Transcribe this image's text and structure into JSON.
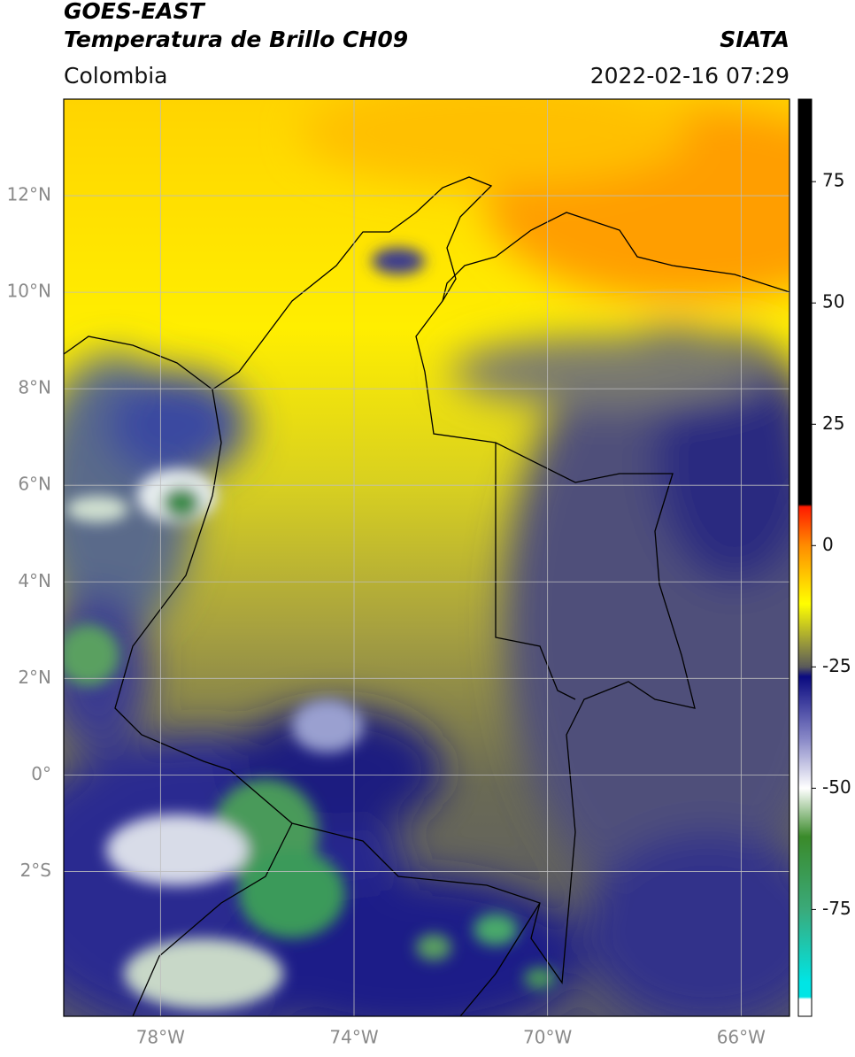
{
  "header": {
    "title": "GOES-EAST",
    "subtitle": "Temperatura de Brillo CH09",
    "source": "SIATA",
    "region": "Colombia",
    "datetime": "2022-02-16 07:29"
  },
  "map": {
    "lon_range": [
      -80,
      -65
    ],
    "lat_range": [
      -5,
      14
    ],
    "grid": true,
    "grid_color": "#bdbdbd",
    "lat_ticks": [
      {
        "value": 12,
        "label": "12°N"
      },
      {
        "value": 10,
        "label": "10°N"
      },
      {
        "value": 8,
        "label": "8°N"
      },
      {
        "value": 6,
        "label": "6°N"
      },
      {
        "value": 4,
        "label": "4°N"
      },
      {
        "value": 2,
        "label": "2°N"
      },
      {
        "value": 0,
        "label": "0°"
      },
      {
        "value": -2,
        "label": "2°S"
      }
    ],
    "lon_ticks": [
      {
        "value": -78,
        "label": "78°W"
      },
      {
        "value": -74,
        "label": "74°W"
      },
      {
        "value": -70,
        "label": "70°W"
      },
      {
        "value": -66,
        "label": "66°W"
      }
    ]
  },
  "colorbar": {
    "range": [
      -97,
      92
    ],
    "ticks": [
      75,
      50,
      25,
      0,
      -25,
      -50,
      -75
    ],
    "stops": [
      {
        "value": 92,
        "color": "#000000"
      },
      {
        "value": 8.5,
        "color": "#000000"
      },
      {
        "value": 8,
        "color": "#ff1a00"
      },
      {
        "value": 0,
        "color": "#ff8c00"
      },
      {
        "value": -12,
        "color": "#ffff00"
      },
      {
        "value": -20,
        "color": "#9a9a3a"
      },
      {
        "value": -25,
        "color": "#5a5a5a"
      },
      {
        "value": -27,
        "color": "#0a0a80"
      },
      {
        "value": -40,
        "color": "#8a8ac8"
      },
      {
        "value": -50,
        "color": "#ffffff"
      },
      {
        "value": -60,
        "color": "#3a8a2a"
      },
      {
        "value": -75,
        "color": "#3aaa7a"
      },
      {
        "value": -90,
        "color": "#00e5e5"
      },
      {
        "value": -93,
        "color": "#00e5e5"
      },
      {
        "value": -93.5,
        "color": "#ffffff"
      },
      {
        "value": -97,
        "color": "#ffffff"
      }
    ]
  }
}
